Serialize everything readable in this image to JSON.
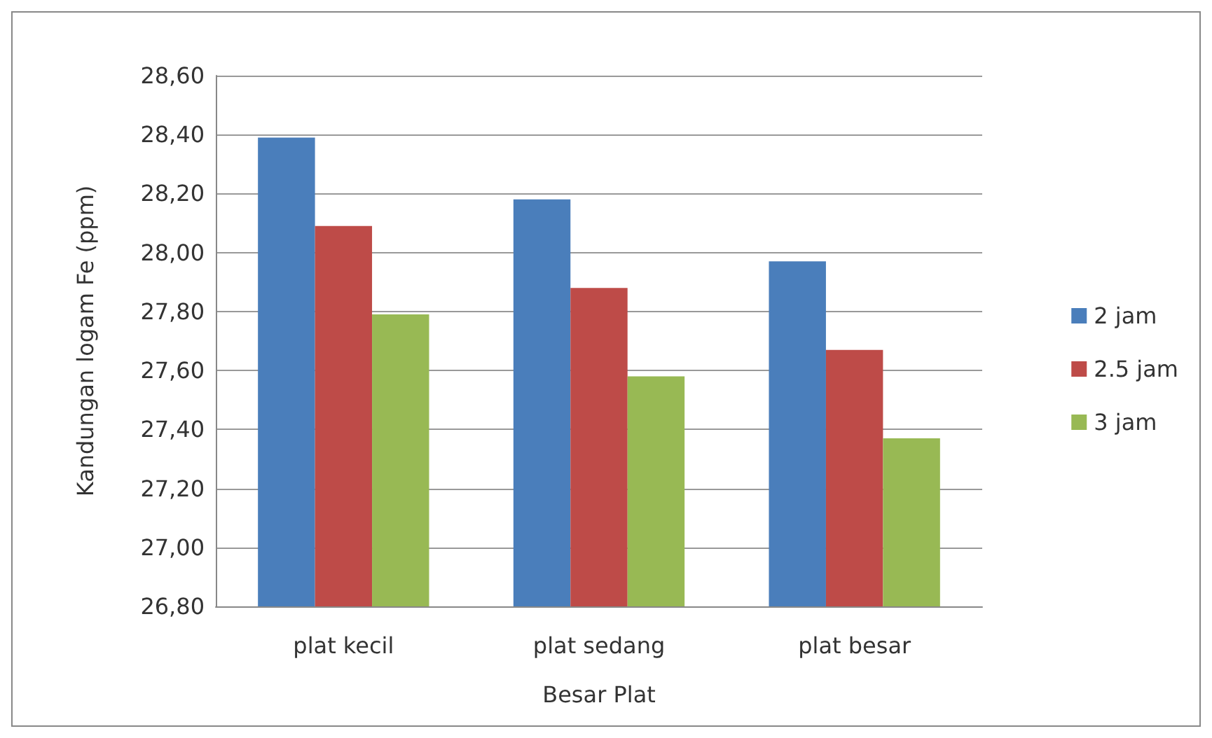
{
  "chart_data": {
    "type": "bar",
    "xlabel": "Besar Plat",
    "ylabel": "Kandungan logam Fe (ppm)",
    "categories": [
      "plat kecil",
      "plat sedang",
      "plat besar"
    ],
    "series": [
      {
        "name": "2 jam",
        "color": "#4a7ebb",
        "values": [
          28.39,
          28.18,
          27.97
        ]
      },
      {
        "name": "2.5 jam",
        "color": "#be4b48",
        "values": [
          28.09,
          27.88,
          27.67
        ]
      },
      {
        "name": "3 jam",
        "color": "#98b954",
        "values": [
          27.79,
          27.58,
          27.37
        ]
      }
    ],
    "ylim": [
      26.8,
      28.6
    ],
    "yticks": [
      {
        "value": 26.8,
        "label": "26,80"
      },
      {
        "value": 27.0,
        "label": "27,00"
      },
      {
        "value": 27.2,
        "label": "27,20"
      },
      {
        "value": 27.4,
        "label": "27,40"
      },
      {
        "value": 27.6,
        "label": "27,60"
      },
      {
        "value": 27.8,
        "label": "27,80"
      },
      {
        "value": 28.0,
        "label": "28,00"
      },
      {
        "value": 28.2,
        "label": "28,20"
      },
      {
        "value": 28.4,
        "label": "28,40"
      },
      {
        "value": 28.6,
        "label": "28,60"
      }
    ],
    "grid": "y",
    "legend": "right"
  }
}
